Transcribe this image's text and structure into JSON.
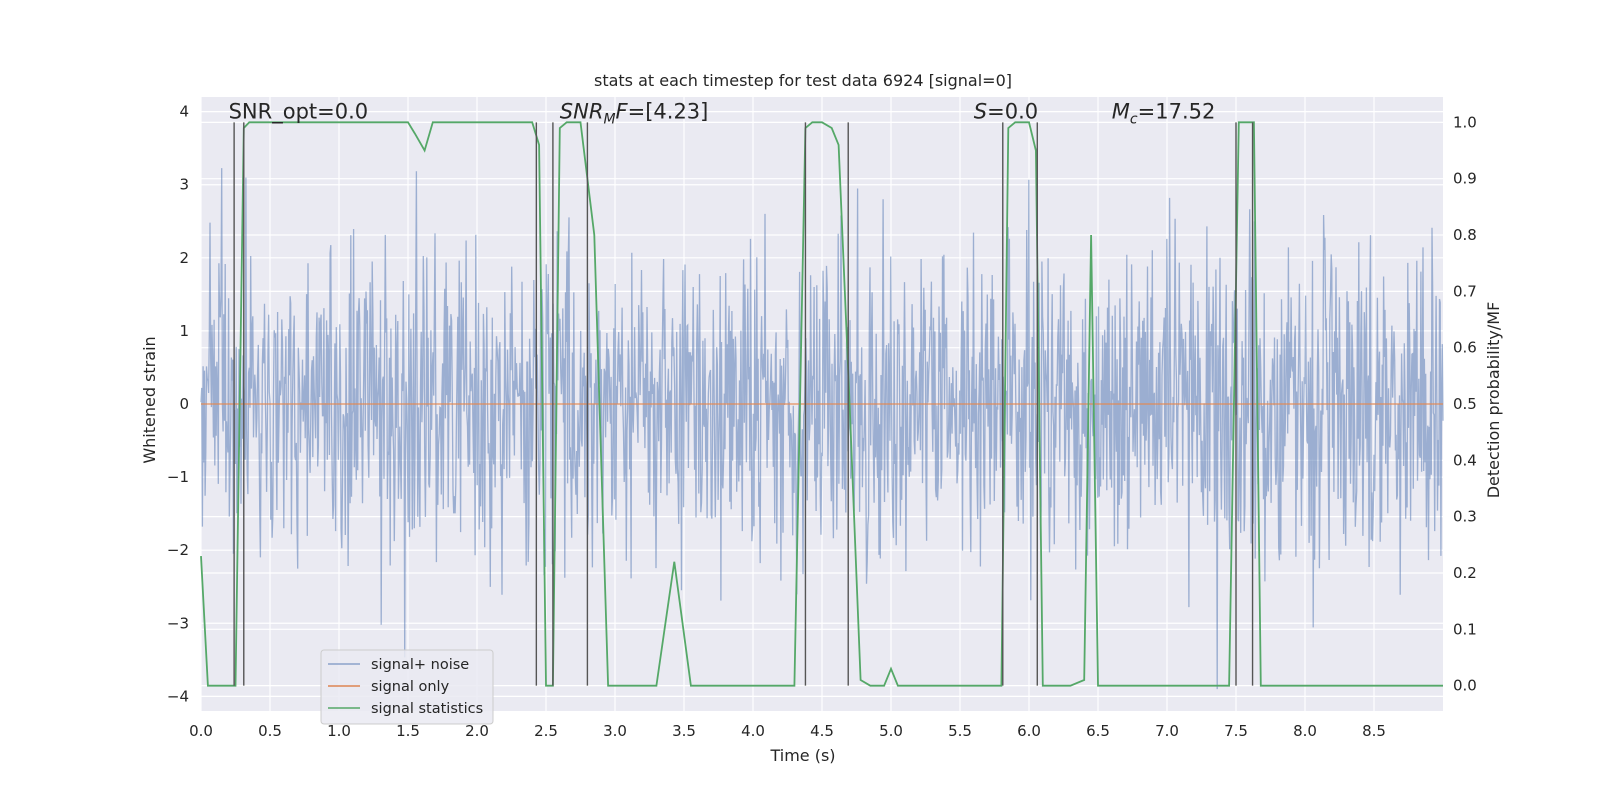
{
  "chart_data": {
    "type": "line",
    "title": "stats at each timestep for test data 6924 [signal=0]",
    "xlabel": "Time (s)",
    "ylabel": "Whitened strain",
    "y2label": "Detection probability/MF",
    "xlim": [
      0.0,
      9.0
    ],
    "ylim": [
      -4.2,
      4.2
    ],
    "y2lim": [
      -0.045,
      1.045
    ],
    "xticks": [
      0.0,
      0.5,
      1.0,
      1.5,
      2.0,
      2.5,
      3.0,
      3.5,
      4.0,
      4.5,
      5.0,
      5.5,
      6.0,
      6.5,
      7.0,
      7.5,
      8.0,
      8.5
    ],
    "xtick_labels": [
      "0.0",
      "0.5",
      "1.0",
      "1.5",
      "2.0",
      "2.5",
      "3.0",
      "3.5",
      "4.0",
      "4.5",
      "5.0",
      "5.5",
      "6.0",
      "6.5",
      "7.0",
      "7.5",
      "8.0",
      "8.5"
    ],
    "yticks": [
      -4,
      -3,
      -2,
      -1,
      0,
      1,
      2,
      3,
      4
    ],
    "ytick_labels": [
      "−4",
      "−3",
      "−2",
      "−1",
      "0",
      "1",
      "2",
      "3",
      "4"
    ],
    "y2ticks": [
      0.0,
      0.1,
      0.2,
      0.3,
      0.4,
      0.5,
      0.6,
      0.7,
      0.8,
      0.9,
      1.0
    ],
    "y2tick_labels": [
      "0.0",
      "0.1",
      "0.2",
      "0.3",
      "0.4",
      "0.5",
      "0.6",
      "0.7",
      "0.8",
      "0.9",
      "1.0"
    ],
    "grid": true,
    "legend_position": "lower-left",
    "annotations": [
      {
        "x": 0.2,
        "y": 4.0,
        "parts": [
          {
            "t": "SNR_opt=0.0",
            "i": false
          }
        ]
      },
      {
        "x": 2.6,
        "y": 4.0,
        "parts": [
          {
            "t": "SNR",
            "i": true
          },
          {
            "t": "M",
            "i": true,
            "sub": true
          },
          {
            "t": "F",
            "i": true
          },
          {
            "t": "=[4.23]",
            "i": false
          }
        ]
      },
      {
        "x": 5.6,
        "y": 4.0,
        "parts": [
          {
            "t": "S",
            "i": true
          },
          {
            "t": "=0.0",
            "i": false
          }
        ]
      },
      {
        "x": 6.6,
        "y": 4.0,
        "parts": [
          {
            "t": "M",
            "i": true
          },
          {
            "t": "c",
            "i": true,
            "sub": true
          },
          {
            "t": "=17.52",
            "i": false
          }
        ]
      }
    ],
    "series": [
      {
        "name": "signal+ noise",
        "color": "#4c72b0",
        "axis": "left",
        "style": "noise",
        "noise_seed": 6924,
        "noise_points": 1800,
        "noise_sigma": 1.0,
        "noise_peak": [
          -3.9,
          3.6
        ]
      },
      {
        "name": "signal only",
        "color": "#dd8452",
        "axis": "left",
        "x": [
          0.0,
          9.0
        ],
        "y": [
          0.0,
          0.0
        ]
      },
      {
        "name": "signal statistics",
        "color": "#55a868",
        "axis": "right",
        "x": [
          0.0,
          0.05,
          0.25,
          0.31,
          0.35,
          0.5,
          1.0,
          1.5,
          1.55,
          1.62,
          1.68,
          1.75,
          2.0,
          2.4,
          2.45,
          2.5,
          2.55,
          2.6,
          2.65,
          2.75,
          2.85,
          2.95,
          3.1,
          3.3,
          3.43,
          3.55,
          3.6,
          3.8,
          4.0,
          4.3,
          4.38,
          4.43,
          4.5,
          4.57,
          4.62,
          4.7,
          4.78,
          4.85,
          4.95,
          5.0,
          5.05,
          5.1,
          5.3,
          5.6,
          5.8,
          5.85,
          5.9,
          6.0,
          6.05,
          6.1,
          6.2,
          6.3,
          6.4,
          6.45,
          6.5,
          6.6,
          6.8,
          7.0,
          7.2,
          7.45,
          7.52,
          7.58,
          7.63,
          7.68,
          7.8,
          8.0,
          8.5,
          9.0
        ],
        "y": [
          0.23,
          0.0,
          0.0,
          0.99,
          1.0,
          1.0,
          1.0,
          1.0,
          0.98,
          0.95,
          1.0,
          1.0,
          1.0,
          1.0,
          0.96,
          0.0,
          0.0,
          0.99,
          1.0,
          1.0,
          0.8,
          0.0,
          0.0,
          0.0,
          0.22,
          0.0,
          0.0,
          0.0,
          0.0,
          0.0,
          0.99,
          1.0,
          1.0,
          0.99,
          0.96,
          0.5,
          0.01,
          0.0,
          0.0,
          0.03,
          0.0,
          0.0,
          0.0,
          0.0,
          0.0,
          0.99,
          1.0,
          1.0,
          0.95,
          0.0,
          0.0,
          0.0,
          0.01,
          0.8,
          0.0,
          0.0,
          0.0,
          0.0,
          0.0,
          0.0,
          1.0,
          1.0,
          1.0,
          0.0,
          0.0,
          0.0,
          0.0,
          0.0
        ]
      }
    ],
    "vlines": {
      "color": "#555555",
      "x": [
        0.24,
        0.31,
        2.43,
        2.55,
        2.8,
        4.38,
        4.69,
        5.81,
        6.06,
        7.5,
        7.62
      ],
      "ymin": [
        0.0,
        0.0,
        0.0,
        0.0,
        0.0,
        0.0,
        0.0,
        0.0,
        0.0,
        0.0,
        0.0
      ],
      "ymax": [
        1.0,
        1.0,
        1.0,
        1.0,
        1.0,
        1.0,
        1.0,
        1.0,
        1.0,
        1.0,
        1.0
      ]
    }
  }
}
